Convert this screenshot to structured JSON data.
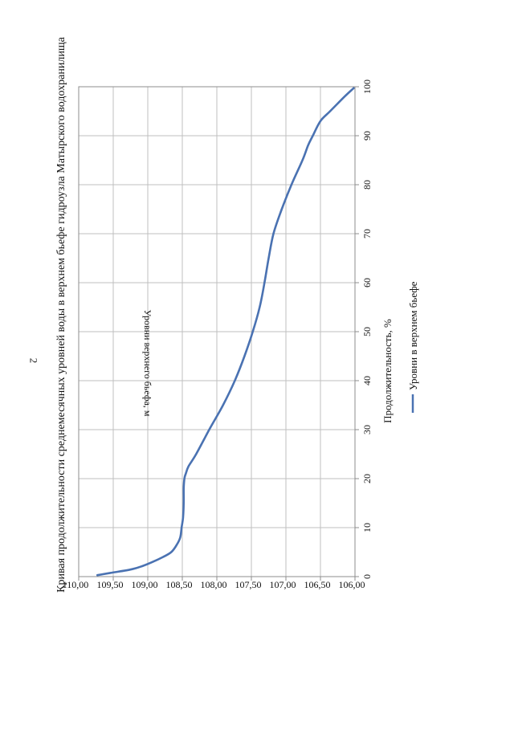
{
  "page": {
    "number": "2"
  },
  "chart_data": {
    "type": "line",
    "orientation": "page rotated 90° counter-clockwise",
    "title": "Кривая продолжительности среднемесячных уровней воды в верхнем бьефе гидроузла Матырского водохранилища",
    "xlabel": "Продолжительность, %",
    "ylabel": "Уровни верхнего бьефа, м",
    "xlim": [
      0,
      100
    ],
    "ylim": [
      106.0,
      110.0
    ],
    "x_ticks": [
      "0",
      "10",
      "20",
      "30",
      "40",
      "50",
      "60",
      "70",
      "80",
      "90",
      "100"
    ],
    "y_ticks": [
      "106,00",
      "106,50",
      "107,00",
      "107,50",
      "108,00",
      "108,50",
      "109,00",
      "109,50",
      "110,00"
    ],
    "grid": true,
    "legend_position": "bottom",
    "colors": {
      "series": "#4a72b2",
      "grid": "#bfbfbf",
      "axis": "#8c8c8c"
    },
    "series": [
      {
        "name": "Уровни в верхнем бьефе",
        "x": [
          0.3,
          0.8,
          1.5,
          2.2,
          3.0,
          4.0,
          5.0,
          6.5,
          8.0,
          10.0,
          12.0,
          15.0,
          18.0,
          20.0,
          21.0,
          22.5,
          25.0,
          30.0,
          35.0,
          40.0,
          45.0,
          50.0,
          55.0,
          60.0,
          65.0,
          70.0,
          75.0,
          80.0,
          85.0,
          88.0,
          90.0,
          93.0,
          95.0,
          98.0,
          99.7
        ],
        "values": [
          109.73,
          109.52,
          109.23,
          109.07,
          108.93,
          108.78,
          108.66,
          108.58,
          108.53,
          108.51,
          108.49,
          108.48,
          108.48,
          108.47,
          108.45,
          108.41,
          108.3,
          108.11,
          107.91,
          107.74,
          107.6,
          107.48,
          107.38,
          107.31,
          107.25,
          107.18,
          107.06,
          106.92,
          106.76,
          106.68,
          106.61,
          106.5,
          106.36,
          106.15,
          106.02
        ]
      }
    ]
  }
}
